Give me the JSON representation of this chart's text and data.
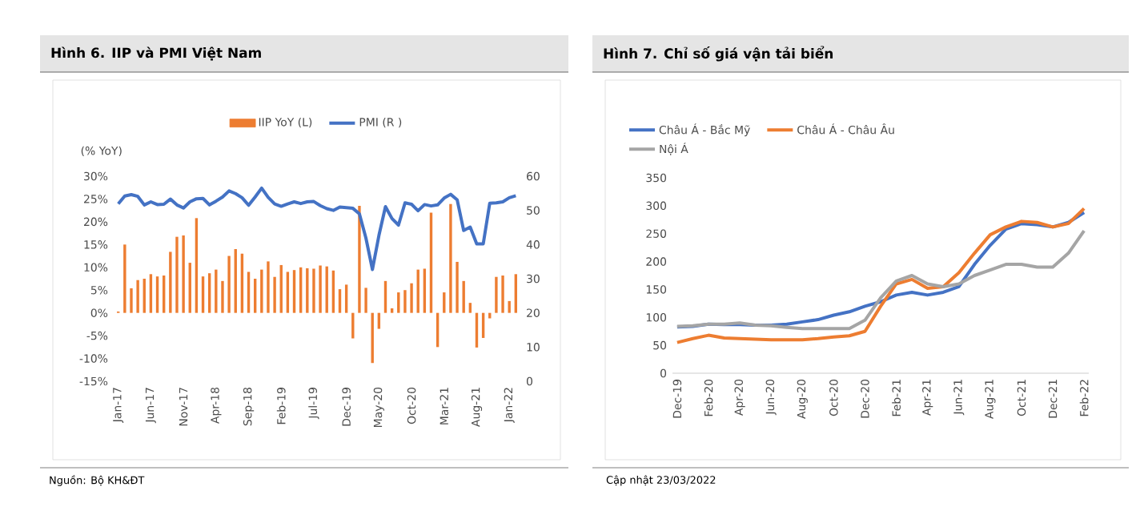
{
  "chart_data": [
    {
      "type": "bar",
      "title": "Hình 6. IIP và PMI Việt Nam",
      "ylabel": "(% YoY)",
      "legend": "top",
      "categories": [
        "Jan-17",
        null,
        null,
        null,
        null,
        "Jun-17",
        null,
        null,
        null,
        null,
        "Nov-17",
        null,
        null,
        null,
        null,
        "Apr-18",
        null,
        null,
        null,
        null,
        "Sep-18",
        null,
        null,
        null,
        null,
        "Feb-19",
        null,
        null,
        null,
        null,
        "Jul-19",
        null,
        null,
        null,
        null,
        "Dec-19",
        null,
        null,
        null,
        null,
        "May-20",
        null,
        null,
        null,
        null,
        "Oct-20",
        null,
        null,
        null,
        null,
        "Mar-21",
        null,
        null,
        null,
        null,
        "Aug-21",
        null,
        null,
        null,
        null,
        "Jan-22",
        null
      ],
      "series": [
        {
          "name": "IIP YoY (L)",
          "type": "bar",
          "color": "#ed7d31",
          "values": [
            0.3,
            15,
            5.4,
            7.2,
            7.5,
            8.5,
            8,
            8.2,
            13.4,
            16.7,
            17,
            11,
            20.8,
            8,
            8.7,
            9.5,
            7,
            12.5,
            14,
            13,
            9,
            7.5,
            9.5,
            11.3,
            7.9,
            10.5,
            9,
            9.4,
            10,
            9.8,
            9.7,
            10.4,
            10.2,
            9.3,
            5.2,
            6.2,
            -5.6,
            23.5,
            5.5,
            -11,
            -3.5,
            7,
            1,
            4.5,
            5,
            6.5,
            9.5,
            9.7,
            22,
            -7.5,
            4.5,
            23.9,
            11.2,
            7,
            2.2,
            -7.6,
            -5.5,
            -1.2,
            7.9,
            8.2,
            2.6,
            8.5
          ]
        },
        {
          "name": "PMI (R )",
          "type": "line",
          "axis": "y2",
          "color": "#4472c4",
          "values": [
            51.9,
            54.2,
            54.6,
            54.1,
            51.6,
            52.5,
            51.7,
            51.8,
            53.3,
            51.6,
            50.7,
            52.5,
            53.4,
            53.5,
            51.6,
            52.7,
            53.9,
            55.7,
            54.9,
            53.7,
            51.5,
            53.9,
            56.5,
            53.8,
            51.9,
            51.2,
            51.9,
            52.5,
            52.0,
            52.5,
            52.6,
            51.4,
            50.5,
            50.0,
            51.0,
            50.8,
            50.6,
            49.0,
            41.9,
            32.7,
            42.7,
            51.1,
            47.6,
            45.7,
            52.2,
            51.8,
            49.9,
            51.7,
            51.3,
            51.6,
            53.6,
            54.7,
            53.1,
            44.1,
            45.1,
            40.2,
            40.2,
            52.1,
            52.2,
            52.5,
            53.7,
            54.3
          ]
        }
      ],
      "ylim": [
        -15,
        30
      ],
      "yticks": [
        {
          "value": -15,
          "label": "-15%"
        },
        {
          "value": -10,
          "label": "-10%"
        },
        {
          "value": -5,
          "label": "-5%"
        },
        {
          "value": 0,
          "label": "0%"
        },
        {
          "value": 5,
          "label": "5%"
        },
        {
          "value": 10,
          "label": "10%"
        },
        {
          "value": 15,
          "label": "15%"
        },
        {
          "value": 20,
          "label": "20%"
        },
        {
          "value": 25,
          "label": "25%"
        },
        {
          "value": 30,
          "label": "30%"
        }
      ],
      "y2lim": [
        0,
        60
      ],
      "y2ticks": [
        0,
        10,
        20,
        30,
        40,
        50,
        60
      ],
      "annotations": [
        "Nguồn: Bộ KH&ĐT"
      ]
    },
    {
      "type": "line",
      "title": "Hình 7. Chỉ số giá vận tải biển",
      "legend": "top left",
      "categories": [
        "Dec-19",
        null,
        "Feb-20",
        null,
        "Apr-20",
        null,
        "Jun-20",
        null,
        "Aug-20",
        null,
        "Oct-20",
        null,
        "Dec-20",
        null,
        "Feb-21",
        null,
        "Apr-21",
        null,
        "Jun-21",
        null,
        "Aug-21",
        null,
        "Oct-21",
        null,
        "Dec-21",
        null,
        "Feb-22"
      ],
      "series": [
        {
          "name": "Châu Á - Bắc Mỹ",
          "color": "#4472c4",
          "values": [
            83,
            84,
            88,
            87,
            87,
            86,
            86,
            88,
            92,
            96,
            104,
            110,
            120,
            128,
            140,
            145,
            140,
            145,
            155,
            195,
            229,
            258,
            268,
            266,
            262,
            270,
            288
          ]
        },
        {
          "name": "Châu Á - Châu Âu",
          "color": "#ed7d31",
          "values": [
            55,
            62,
            68,
            63,
            62,
            61,
            60,
            60,
            60,
            62,
            65,
            67,
            75,
            120,
            160,
            168,
            152,
            155,
            180,
            215,
            248,
            262,
            272,
            270,
            262,
            268,
            295
          ]
        },
        {
          "name": "Nội Á",
          "color": "#a5a5a5",
          "values": [
            84,
            85,
            88,
            88,
            90,
            86,
            85,
            82,
            80,
            80,
            80,
            80,
            95,
            135,
            165,
            175,
            160,
            155,
            160,
            175,
            185,
            195,
            195,
            190,
            190,
            215,
            255
          ]
        }
      ],
      "ylim": [
        0,
        350
      ],
      "yticks": [
        0,
        50,
        100,
        150,
        200,
        250,
        300,
        350
      ],
      "annotations": [
        "Cập nhật 23/03/2022"
      ]
    }
  ]
}
